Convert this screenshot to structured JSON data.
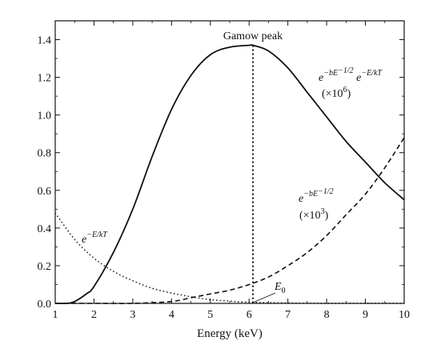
{
  "chart_data": {
    "type": "line",
    "title": "",
    "xlabel": "Energy (keV)",
    "ylabel": "",
    "xlim": [
      1,
      10
    ],
    "ylim": [
      0,
      1.5
    ],
    "grid": false,
    "x_ticks": [
      1,
      2,
      3,
      4,
      5,
      6,
      7,
      8,
      9,
      10
    ],
    "x_tick_labels": [
      "1",
      "2",
      "3",
      "4",
      "5",
      "6",
      "7",
      "8",
      "9",
      "10"
    ],
    "y_ticks": [
      0,
      0.2,
      0.4,
      0.6,
      0.8,
      1.0,
      1.2,
      1.4
    ],
    "y_tick_labels": [
      "0.0",
      "0.2",
      "0.4",
      "0.6",
      "0.8",
      "1.0",
      "1.2",
      "1.4"
    ],
    "series": [
      {
        "style": "solid",
        "x": [
          1.0,
          1.3,
          1.5,
          1.8,
          2.0,
          2.5,
          3.0,
          3.5,
          4.0,
          4.5,
          5.0,
          5.5,
          6.0,
          6.1,
          6.5,
          7.0,
          7.5,
          8.0,
          8.5,
          9.0,
          9.5,
          10.0
        ],
        "values": [
          0.0,
          0.0,
          0.01,
          0.05,
          0.09,
          0.27,
          0.5,
          0.78,
          1.03,
          1.21,
          1.32,
          1.36,
          1.37,
          1.37,
          1.34,
          1.25,
          1.12,
          0.99,
          0.86,
          0.75,
          0.64,
          0.55
        ]
      },
      {
        "style": "dashed",
        "x": [
          1.0,
          2.0,
          3.0,
          4.0,
          4.5,
          5.0,
          5.5,
          6.0,
          6.5,
          7.0,
          7.5,
          8.0,
          8.5,
          9.0,
          9.5,
          10.0
        ],
        "values": [
          0.0,
          0.0,
          0.0,
          0.01,
          0.03,
          0.05,
          0.07,
          0.1,
          0.14,
          0.2,
          0.27,
          0.36,
          0.47,
          0.58,
          0.72,
          0.88
        ]
      },
      {
        "style": "dotted",
        "x": [
          1.0,
          1.5,
          2.0,
          2.5,
          3.0,
          3.5,
          4.0,
          4.5,
          5.0,
          5.5,
          6.0,
          7.0,
          8.0,
          9.0,
          10.0
        ],
        "values": [
          0.48,
          0.34,
          0.24,
          0.17,
          0.12,
          0.08,
          0.055,
          0.035,
          0.02,
          0.012,
          0.006,
          0.002,
          0.0,
          0.0,
          0.0
        ]
      }
    ],
    "vertical_line": {
      "x": 6.1,
      "y_top": 1.37,
      "style": "dotted"
    },
    "annotations": {
      "peak_label": "Gamow peak",
      "product_label_base": "e",
      "product_label_exp1": "−bE",
      "product_label_exp1_sup": "−1/2",
      "product_label_mid": " e",
      "product_label_exp2": "−E/kT",
      "product_scale_open": "(×10",
      "product_scale_exp": "6",
      "product_scale_close": ")",
      "tunnel_label_base": "e",
      "tunnel_label_exp": "−bE",
      "tunnel_label_exp_sup": "−1/2",
      "tunnel_scale_open": "(×10",
      "tunnel_scale_exp": "3",
      "tunnel_scale_close": ")",
      "boltz_label_base": "e",
      "boltz_label_exp": "−E/kT",
      "e0_label_base": "E",
      "e0_label_sub": "0"
    }
  }
}
